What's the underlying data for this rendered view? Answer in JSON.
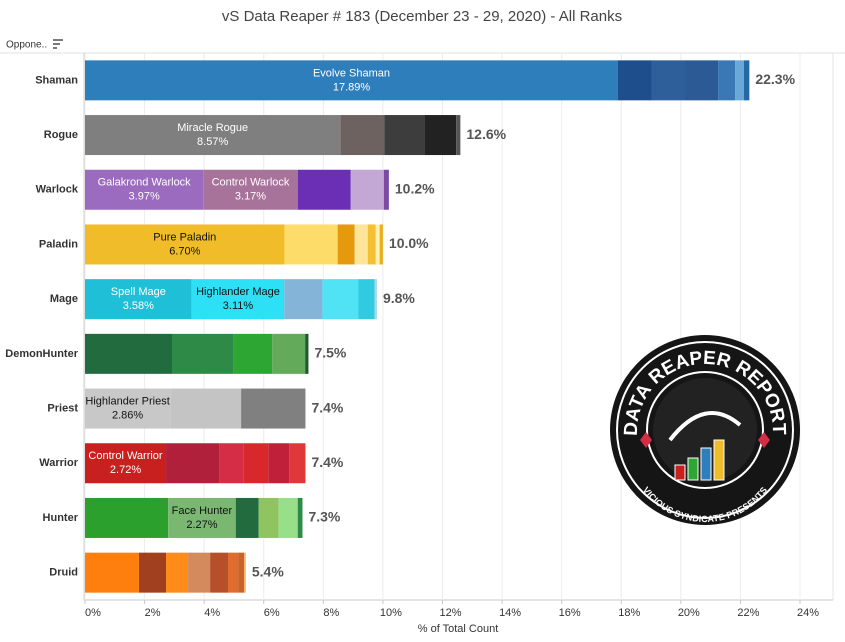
{
  "chart_data": {
    "type": "stacked-bar-horizontal",
    "title": "vS Data Reaper # 183 (December 23 - 29, 2020) - All Ranks",
    "header_label": "Oppone..",
    "xlabel": "% of Total Count",
    "xlim": [
      0,
      24
    ],
    "xticks": [
      {
        "value": 0,
        "label": "0%"
      },
      {
        "value": 2,
        "label": "2%"
      },
      {
        "value": 4,
        "label": "4%"
      },
      {
        "value": 6,
        "label": "6%"
      },
      {
        "value": 8,
        "label": "8%"
      },
      {
        "value": 10,
        "label": "10%"
      },
      {
        "value": 12,
        "label": "12%"
      },
      {
        "value": 14,
        "label": "14%"
      },
      {
        "value": 16,
        "label": "16%"
      },
      {
        "value": 18,
        "label": "18%"
      },
      {
        "value": 20,
        "label": "20%"
      },
      {
        "value": 22,
        "label": "22%"
      },
      {
        "value": 24,
        "label": "24%"
      }
    ],
    "grid": true,
    "bars": [
      {
        "category": "Shaman",
        "total": 22.3,
        "total_label": "22.3%",
        "segments": [
          {
            "name": "Evolve Shaman",
            "value": 17.89,
            "value_label": "17.89%",
            "color": "#2e7ebc"
          },
          {
            "value": 1.14,
            "color": "#1f4e8c"
          },
          {
            "value": 1.11,
            "color": "#2f5f9a"
          },
          {
            "value": 1.11,
            "color": "#2b5a94"
          },
          {
            "value": 0.57,
            "color": "#3a78b5"
          },
          {
            "value": 0.3,
            "color": "#6aa8d8"
          },
          {
            "value": 0.18,
            "color": "#2468a8"
          }
        ]
      },
      {
        "category": "Rogue",
        "total": 12.6,
        "total_label": "12.6%",
        "segments": [
          {
            "name": "Miracle Rogue",
            "value": 8.57,
            "value_label": "8.57%",
            "color": "#7f7f7f"
          },
          {
            "value": 1.48,
            "color": "#6e6260"
          },
          {
            "value": 1.34,
            "color": "#3d3d3d"
          },
          {
            "value": 1.07,
            "color": "#222222"
          },
          {
            "value": 0.14,
            "color": "#555555"
          }
        ]
      },
      {
        "category": "Warlock",
        "total": 10.2,
        "total_label": "10.2%",
        "segments": [
          {
            "name": "Galakrond Warlock",
            "value": 3.97,
            "value_label": "3.97%",
            "color": "#9b6bbf"
          },
          {
            "name": "Control Warlock",
            "value": 3.17,
            "value_label": "3.17%",
            "color": "#a8739a"
          },
          {
            "value": 1.78,
            "color": "#6a2fb5"
          },
          {
            "value": 1.11,
            "color": "#c3a8d6"
          },
          {
            "value": 0.17,
            "color": "#7a4aa5"
          }
        ]
      },
      {
        "category": "Paladin",
        "total": 10.0,
        "total_label": "10.0%",
        "segments": [
          {
            "name": "Pure Paladin",
            "value": 6.7,
            "value_label": "6.70%",
            "color": "#f0bc2a"
          },
          {
            "value": 1.78,
            "color": "#fddc6a"
          },
          {
            "value": 0.57,
            "color": "#e59a0d"
          },
          {
            "value": 0.44,
            "color": "#fde59a"
          },
          {
            "value": 0.27,
            "color": "#f5c033"
          },
          {
            "value": 0.13,
            "color": "#fff0b0"
          },
          {
            "value": 0.11,
            "color": "#e8b020"
          }
        ]
      },
      {
        "category": "Mage",
        "total": 9.8,
        "total_label": "9.8%",
        "segments": [
          {
            "name": "Spell Mage",
            "value": 3.58,
            "value_label": "3.58%",
            "color": "#1fbfd8"
          },
          {
            "name": "Highlander Mage",
            "value": 3.11,
            "value_label": "3.11%",
            "color": "#2ee0f5"
          },
          {
            "value": 1.28,
            "color": "#85b4d9"
          },
          {
            "value": 1.21,
            "color": "#4fe3f5"
          },
          {
            "value": 0.54,
            "color": "#30cbe0"
          },
          {
            "value": 0.08,
            "color": "#a9d8ec"
          }
        ]
      },
      {
        "category": "DemonHunter",
        "total": 7.5,
        "total_label": "7.5%",
        "segments": [
          {
            "value": 2.92,
            "color": "#226b3f"
          },
          {
            "value": 2.05,
            "color": "#2e8b47"
          },
          {
            "value": 1.31,
            "color": "#2ea634"
          },
          {
            "value": 1.11,
            "color": "#63aa5a"
          },
          {
            "value": 0.11,
            "color": "#1d5a30"
          }
        ]
      },
      {
        "category": "Priest",
        "total": 7.4,
        "total_label": "7.4%",
        "segments": [
          {
            "name": "Highlander Priest",
            "value": 2.86,
            "value_label": "2.86%",
            "color": "#c8c8c8"
          },
          {
            "value": 2.38,
            "color": "#c4c4c4"
          },
          {
            "value": 2.16,
            "color": "#808080"
          }
        ]
      },
      {
        "category": "Warrior",
        "total": 7.4,
        "total_label": "7.4%",
        "segments": [
          {
            "name": "Control Warrior",
            "value": 2.72,
            "value_label": "2.72%",
            "color": "#c8201f"
          },
          {
            "value": 1.78,
            "color": "#b0203a"
          },
          {
            "value": 0.81,
            "color": "#d42d45"
          },
          {
            "value": 0.84,
            "color": "#d8282c"
          },
          {
            "value": 0.7,
            "color": "#c0203a"
          },
          {
            "value": 0.55,
            "color": "#e03838"
          }
        ]
      },
      {
        "category": "Hunter",
        "total": 7.3,
        "total_label": "7.3%",
        "segments": [
          {
            "value": 2.79,
            "color": "#2ca02c"
          },
          {
            "name": "Face Hunter",
            "value": 2.27,
            "value_label": "2.27%",
            "color": "#7ab872"
          },
          {
            "value": 0.77,
            "color": "#226b3f"
          },
          {
            "value": 0.67,
            "color": "#8fc460"
          },
          {
            "value": 0.64,
            "color": "#98df8a"
          },
          {
            "value": 0.16,
            "color": "#2e8b47"
          }
        ]
      },
      {
        "category": "Druid",
        "total": 5.4,
        "total_label": "5.4%",
        "segments": [
          {
            "value": 1.81,
            "color": "#ff7f0e"
          },
          {
            "value": 0.91,
            "color": "#a0401f"
          },
          {
            "value": 0.74,
            "color": "#ff8c1a"
          },
          {
            "value": 0.74,
            "color": "#d38b5d"
          },
          {
            "value": 0.6,
            "color": "#b5502a"
          },
          {
            "value": 0.34,
            "color": "#e06d2e"
          },
          {
            "value": 0.2,
            "color": "#c86428"
          },
          {
            "value": 0.06,
            "color": "#ffb070"
          }
        ]
      }
    ],
    "logo": {
      "title": "DATA REAPER REPORT",
      "subtitle": "VICIOUS SYNDICATE PRESENTS"
    }
  }
}
